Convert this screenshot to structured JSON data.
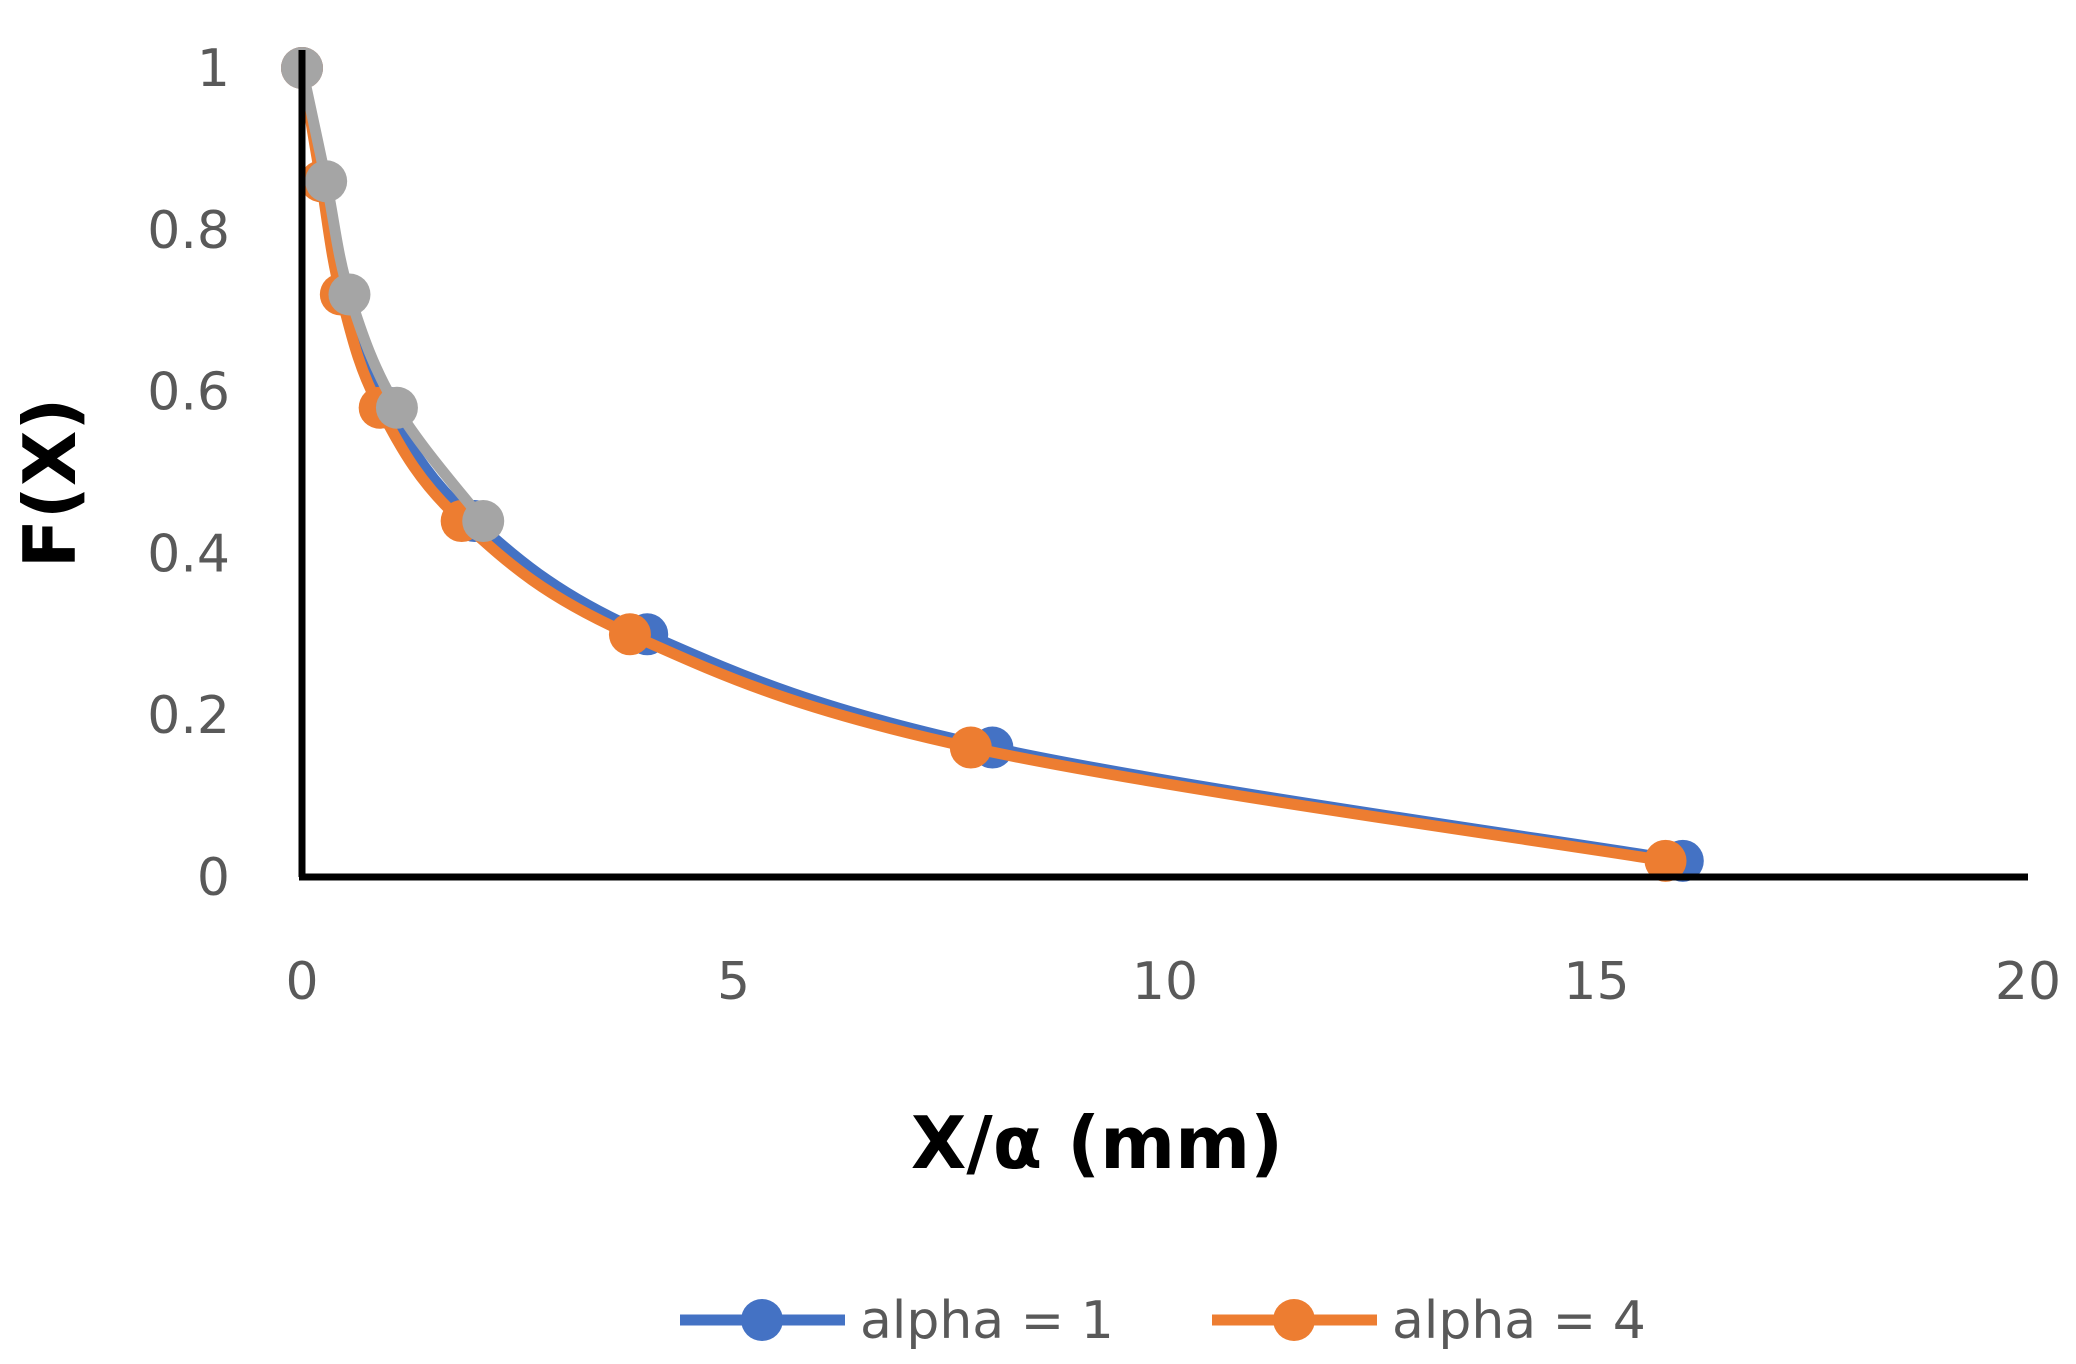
{
  "chart_data": {
    "type": "line",
    "xlabel": "X/α (mm)",
    "ylabel": "F(X)",
    "xlim": [
      0,
      20
    ],
    "ylim": [
      0,
      1
    ],
    "x_ticks": [
      "0",
      "5",
      "10",
      "15",
      "20"
    ],
    "y_ticks": [
      "0",
      "0.2",
      "0.4",
      "0.6",
      "0.8",
      "1"
    ],
    "grid": false,
    "legend_position": "bottom",
    "smooth": true,
    "series": [
      {
        "name": "alpha = 1",
        "color": "#4472C4",
        "x": [
          0,
          0.25,
          0.5,
          1,
          2,
          4,
          8,
          16
        ],
        "y": [
          1,
          0.86,
          0.72,
          0.58,
          0.44,
          0.3,
          0.16,
          0.02
        ],
        "in_legend": true
      },
      {
        "name": "alpha = 4",
        "color": "#ED7D31",
        "x": [
          0,
          0.22,
          0.45,
          0.9,
          1.85,
          3.8,
          7.75,
          15.8
        ],
        "y": [
          1,
          0.86,
          0.72,
          0.58,
          0.44,
          0.3,
          0.16,
          0.02
        ],
        "in_legend": true
      },
      {
        "color": "#A5A5A5",
        "x": [
          0,
          0.28,
          0.55,
          1.1,
          2.1
        ],
        "y": [
          1,
          0.86,
          0.72,
          0.58,
          0.44
        ],
        "in_legend": false
      }
    ]
  }
}
